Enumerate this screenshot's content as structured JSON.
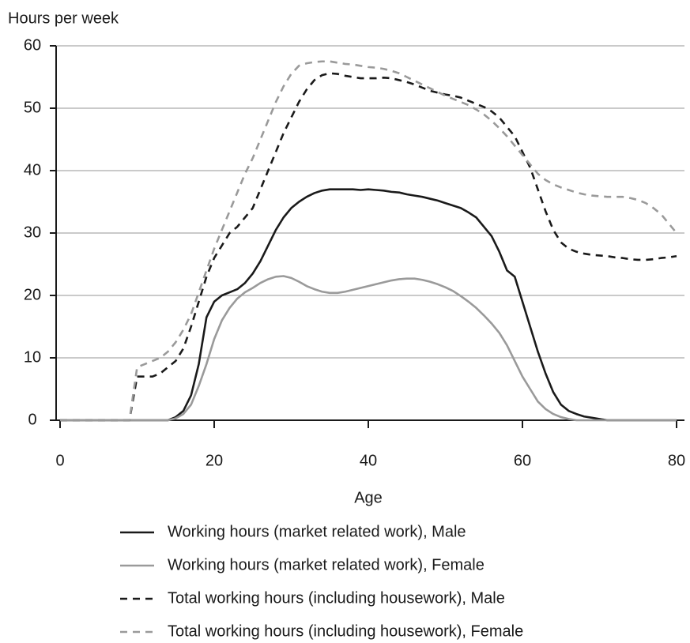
{
  "chart_data": {
    "type": "line",
    "y_label": "Hours per week",
    "x_label": "Age",
    "x": [
      0,
      1,
      2,
      3,
      4,
      5,
      6,
      7,
      8,
      9,
      10,
      11,
      12,
      13,
      14,
      15,
      16,
      17,
      18,
      19,
      20,
      21,
      22,
      23,
      24,
      25,
      26,
      27,
      28,
      29,
      30,
      31,
      32,
      33,
      34,
      35,
      36,
      37,
      38,
      39,
      40,
      41,
      42,
      43,
      44,
      45,
      46,
      47,
      48,
      49,
      50,
      51,
      52,
      53,
      54,
      55,
      56,
      57,
      58,
      59,
      60,
      61,
      62,
      63,
      64,
      65,
      66,
      67,
      68,
      69,
      70,
      71,
      72,
      73,
      74,
      75,
      76,
      77,
      78,
      79,
      80
    ],
    "xlim": [
      0,
      80
    ],
    "xticks": [
      0,
      20,
      40,
      60,
      80
    ],
    "ylim": [
      0,
      60
    ],
    "yticks": [
      0,
      10,
      20,
      30,
      40,
      50,
      60
    ],
    "grid": true,
    "series": [
      {
        "name": "Working hours (market related work), Male",
        "color": "#1a1a1a",
        "dashed": false,
        "values": [
          0,
          0,
          0,
          0,
          0,
          0,
          0,
          0,
          0,
          0,
          0,
          0,
          0,
          0,
          0,
          0.5,
          1.5,
          4,
          9,
          16.5,
          19,
          20,
          20.5,
          21,
          22,
          23.5,
          25.5,
          28,
          30.5,
          32.5,
          34,
          35,
          35.8,
          36.4,
          36.8,
          37,
          37,
          37,
          37,
          36.9,
          37,
          36.9,
          36.8,
          36.6,
          36.5,
          36.2,
          36,
          35.8,
          35.5,
          35.2,
          34.8,
          34.4,
          34,
          33.3,
          32.5,
          31,
          29.5,
          27,
          24,
          23,
          19,
          15,
          11,
          7.5,
          4.5,
          2.5,
          1.5,
          1,
          0.6,
          0.4,
          0.2,
          0,
          0,
          0,
          0,
          0,
          0,
          0,
          0,
          0,
          0
        ]
      },
      {
        "name": "Working hours (market related work), Female",
        "color": "#9a9a9a",
        "dashed": false,
        "values": [
          0,
          0,
          0,
          0,
          0,
          0,
          0,
          0,
          0,
          0,
          0,
          0,
          0,
          0,
          0,
          0.3,
          1,
          2.5,
          5.5,
          9,
          13,
          16,
          18,
          19.5,
          20.5,
          21.2,
          22,
          22.6,
          23,
          23.1,
          22.8,
          22.2,
          21.5,
          21,
          20.6,
          20.4,
          20.4,
          20.6,
          20.9,
          21.2,
          21.5,
          21.8,
          22.1,
          22.4,
          22.6,
          22.7,
          22.7,
          22.5,
          22.2,
          21.8,
          21.3,
          20.7,
          19.9,
          19,
          18,
          16.8,
          15.5,
          14,
          12,
          9.5,
          7,
          5,
          3,
          1.8,
          1,
          0.5,
          0.2,
          0,
          0,
          0,
          0,
          0,
          0,
          0,
          0,
          0,
          0,
          0,
          0,
          0,
          0
        ]
      },
      {
        "name": "Total working hours (including housework), Male",
        "color": "#1a1a1a",
        "dashed": true,
        "values": [
          0,
          0,
          0,
          0,
          0,
          0,
          0,
          0,
          0,
          0,
          7,
          7,
          7,
          7.5,
          8.5,
          9.5,
          11.5,
          15,
          19,
          23,
          26,
          28,
          30,
          31,
          32.5,
          34,
          37,
          40,
          43,
          46,
          48.5,
          51,
          53,
          54.5,
          55.3,
          55.6,
          55.5,
          55.2,
          55,
          54.8,
          54.8,
          54.8,
          54.9,
          54.8,
          54.5,
          54.2,
          53.8,
          53.3,
          52.8,
          52.5,
          52.2,
          52,
          51.7,
          51.2,
          50.7,
          50.2,
          49.5,
          48.5,
          47,
          45.5,
          43,
          40.5,
          37,
          33.5,
          30.5,
          28.5,
          27.5,
          27,
          26.7,
          26.5,
          26.4,
          26.3,
          26.1,
          26,
          25.8,
          25.7,
          25.7,
          25.8,
          26,
          26.1,
          26.3
        ]
      },
      {
        "name": "Total working hours (including housework), Female",
        "color": "#9a9a9a",
        "dashed": true,
        "values": [
          0,
          0,
          0,
          0,
          0,
          0,
          0,
          0,
          0,
          0,
          8.5,
          9,
          9.5,
          10,
          11,
          12.5,
          14.5,
          17,
          20.5,
          24,
          27.5,
          30.5,
          33.5,
          36.5,
          39.5,
          42,
          45,
          48,
          51,
          53.5,
          55.5,
          56.8,
          57.2,
          57.4,
          57.5,
          57.5,
          57.3,
          57.1,
          57,
          56.8,
          56.6,
          56.5,
          56.3,
          56,
          55.6,
          55,
          54.4,
          53.8,
          53.2,
          52.6,
          52,
          51.5,
          51,
          50.5,
          49.8,
          49,
          48,
          46.8,
          45.5,
          44,
          42.5,
          41,
          39.5,
          38.5,
          37.8,
          37.3,
          36.9,
          36.5,
          36.2,
          36,
          35.9,
          35.8,
          35.8,
          35.8,
          35.6,
          35.3,
          34.8,
          34,
          33,
          31.5,
          30
        ]
      }
    ]
  }
}
